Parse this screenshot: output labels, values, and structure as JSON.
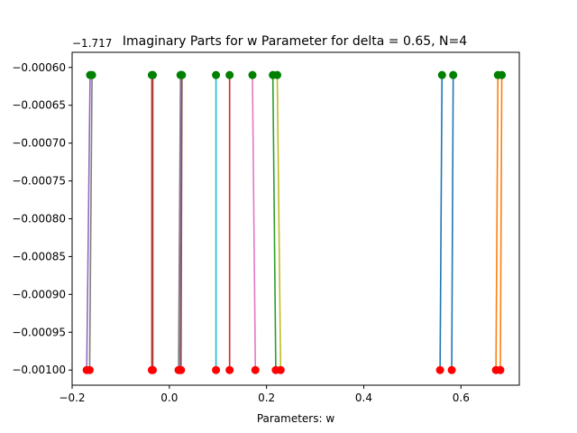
{
  "chart_data": {
    "type": "line",
    "title": "Imaginary Parts for w Parameter for delta = 0.65, N=4",
    "xlabel": "Parameters: w",
    "ylabel": "",
    "y_offset_label": "−1.717",
    "xlim": [
      -0.2,
      0.72
    ],
    "ylim": [
      -0.00102,
      -0.00058
    ],
    "x_ticks": [
      -0.2,
      0.0,
      0.2,
      0.4,
      0.6
    ],
    "x_tick_labels": [
      "−0.2",
      "0.0",
      "0.2",
      "0.4",
      "0.6"
    ],
    "y_ticks": [
      -0.0006,
      -0.00065,
      -0.0007,
      -0.00075,
      -0.0008,
      -0.00085,
      -0.0009,
      -0.00095,
      -0.001
    ],
    "y_tick_labels": [
      "−0.00060",
      "−0.00065",
      "−0.00070",
      "−0.00075",
      "−0.00080",
      "−0.00085",
      "−0.00090",
      "−0.00095",
      "−0.00100"
    ],
    "grid": false,
    "start_marker_color": "#ff0000",
    "end_marker_color": "#008000",
    "series": [
      {
        "color": "#1f77b4",
        "x": [
          0.557,
          0.561
        ],
        "y": [
          -0.001,
          -0.00061
        ]
      },
      {
        "color": "#ff7f0e",
        "x": [
          0.672,
          0.676
        ],
        "y": [
          -0.001,
          -0.00061
        ]
      },
      {
        "color": "#2ca02c",
        "x": [
          0.219,
          0.213
        ],
        "y": [
          -0.001,
          -0.00061
        ]
      },
      {
        "color": "#d62728",
        "x": [
          0.124,
          0.124
        ],
        "y": [
          -0.001,
          -0.00061
        ]
      },
      {
        "color": "#9467bd",
        "x": [
          -0.17,
          -0.163
        ],
        "y": [
          -0.001,
          -0.00061
        ]
      },
      {
        "color": "#8c564b",
        "x": [
          -0.034,
          -0.034
        ],
        "y": [
          -0.001,
          -0.00061
        ]
      },
      {
        "color": "#e377c2",
        "x": [
          0.177,
          0.171
        ],
        "y": [
          -0.001,
          -0.00061
        ]
      },
      {
        "color": "#7f7f7f",
        "x": [
          0.019,
          0.023
        ],
        "y": [
          -0.001,
          -0.00061
        ]
      },
      {
        "color": "#bcbd22",
        "x": [
          0.229,
          0.222
        ],
        "y": [
          -0.001,
          -0.00061
        ]
      },
      {
        "color": "#17becf",
        "x": [
          0.096,
          0.096
        ],
        "y": [
          -0.001,
          -0.00061
        ]
      },
      {
        "color": "#1f77b4",
        "x": [
          0.581,
          0.584
        ],
        "y": [
          -0.001,
          -0.00061
        ]
      },
      {
        "color": "#ff7f0e",
        "x": [
          0.681,
          0.684
        ],
        "y": [
          -0.001,
          -0.00061
        ]
      },
      {
        "color": "#d62728",
        "x": [
          -0.036,
          -0.036
        ],
        "y": [
          -0.001,
          -0.00061
        ]
      },
      {
        "color": "#9467bd",
        "x": [
          0.022,
          0.025
        ],
        "y": [
          -0.001,
          -0.00061
        ]
      },
      {
        "color": "#8c564b",
        "x": [
          0.024,
          0.026
        ],
        "y": [
          -0.001,
          -0.00061
        ]
      },
      {
        "color": "#7f7f7f",
        "x": [
          -0.164,
          -0.159
        ],
        "y": [
          -0.001,
          -0.00061
        ]
      }
    ]
  }
}
